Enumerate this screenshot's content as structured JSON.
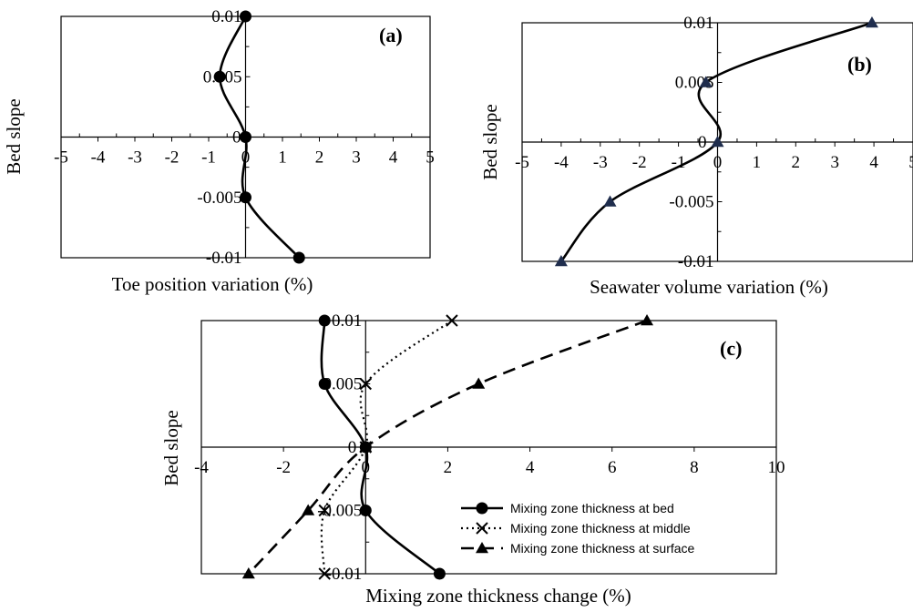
{
  "chart_data": [
    {
      "panel": "(a)",
      "type": "line",
      "xlabel": "Toe position variation (%)",
      "ylabel": "Bed slope",
      "xlim": [
        -5,
        5
      ],
      "ylim": [
        -0.01,
        0.01
      ],
      "x_ticks": [
        "-5",
        "-4",
        "-3",
        "-2",
        "-1",
        "0",
        "1",
        "2",
        "3",
        "4",
        "5"
      ],
      "y_ticks": [
        "0.01",
        "0.005",
        "0",
        "-0.005",
        "-0.01"
      ],
      "grid": false,
      "series": [
        {
          "marker": "circle",
          "line": "solid",
          "color": "#000000",
          "points": [
            {
              "x": 0.0,
              "y": 0.01
            },
            {
              "x": -0.7,
              "y": 0.005
            },
            {
              "x": 0.0,
              "y": 0.0
            },
            {
              "x": 0.0,
              "y": -0.005
            },
            {
              "x": 1.45,
              "y": -0.01
            }
          ]
        }
      ]
    },
    {
      "panel": "(b)",
      "type": "line",
      "xlabel": "Seawater volume variation (%)",
      "ylabel": "Bed slope",
      "xlim": [
        -5,
        5
      ],
      "ylim": [
        -0.01,
        0.01
      ],
      "x_ticks": [
        "-5",
        "-4",
        "-3",
        "-2",
        "-1",
        "0",
        "1",
        "2",
        "3",
        "4",
        "5"
      ],
      "y_ticks": [
        "0.01",
        "0.005",
        "0",
        "-0.005",
        "-0.01"
      ],
      "grid": false,
      "series": [
        {
          "marker": "triangle",
          "line": "solid",
          "color": "#000000",
          "marker_color": "#1f2d4d",
          "points": [
            {
              "x": 3.95,
              "y": 0.01
            },
            {
              "x": -0.3,
              "y": 0.005
            },
            {
              "x": 0.0,
              "y": 0.0
            },
            {
              "x": -2.75,
              "y": -0.005
            },
            {
              "x": -4.0,
              "y": -0.01
            }
          ]
        }
      ]
    },
    {
      "panel": "(c)",
      "type": "line",
      "xlabel": "Mixing zone thickness change (%)",
      "ylabel": "Bed slope",
      "xlim": [
        -4,
        10
      ],
      "ylim": [
        -0.01,
        0.01
      ],
      "x_ticks": [
        "-4",
        "-2",
        "0",
        "2",
        "4",
        "6",
        "8",
        "10"
      ],
      "y_ticks": [
        "0.01",
        "0.005",
        "0",
        "-0.005",
        "-0.01"
      ],
      "grid": false,
      "legend_position": "bottom-right",
      "series": [
        {
          "name": "Mixing zone thickness at bed",
          "marker": "circle",
          "line": "solid",
          "color": "#000000",
          "points": [
            {
              "x": -1.0,
              "y": 0.01
            },
            {
              "x": -1.0,
              "y": 0.005
            },
            {
              "x": 0.0,
              "y": 0.0
            },
            {
              "x": 0.0,
              "y": -0.005
            },
            {
              "x": 1.8,
              "y": -0.01
            }
          ]
        },
        {
          "name": "Mixing zone thickness at middle",
          "marker": "x",
          "line": "dotted",
          "color": "#000000",
          "points": [
            {
              "x": 2.1,
              "y": 0.01
            },
            {
              "x": 0.0,
              "y": 0.005
            },
            {
              "x": 0.0,
              "y": 0.0
            },
            {
              "x": -1.0,
              "y": -0.005
            },
            {
              "x": -1.0,
              "y": -0.01
            }
          ]
        },
        {
          "name": "Mixing zone thickness at surface",
          "marker": "triangle",
          "line": "dashed",
          "color": "#000000",
          "points": [
            {
              "x": 6.85,
              "y": 0.01
            },
            {
              "x": 2.75,
              "y": 0.005
            },
            {
              "x": 0.0,
              "y": 0.0
            },
            {
              "x": -1.4,
              "y": -0.005
            },
            {
              "x": -2.85,
              "y": -0.01
            }
          ]
        }
      ]
    }
  ]
}
